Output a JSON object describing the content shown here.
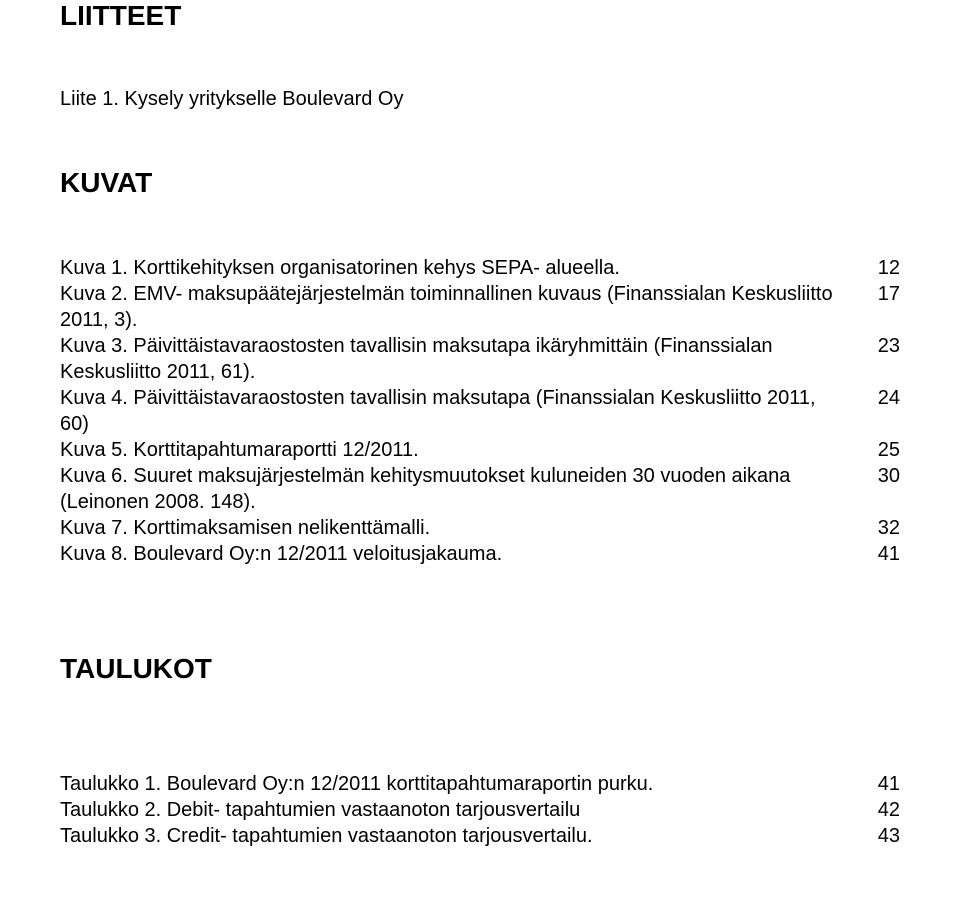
{
  "liitteet": {
    "heading": "LIITTEET",
    "item": "Liite 1. Kysely yritykselle Boulevard Oy"
  },
  "kuvat": {
    "heading": "KUVAT",
    "entries": [
      {
        "text": "Kuva 1. Korttikehityksen organisatorinen kehys SEPA- alueella.",
        "page": "12"
      },
      {
        "text": "Kuva 2. EMV- maksupäätejärjestelmän toiminnallinen kuvaus (Finanssialan Keskusliitto 2011, 3).",
        "page": "17"
      },
      {
        "text": "Kuva 3. Päivittäistavaraostosten tavallisin maksutapa ikäryhmittäin (Finanssialan Keskusliitto 2011, 61).",
        "page": "23"
      },
      {
        "text": "Kuva 4. Päivittäistavaraostosten tavallisin maksutapa (Finanssialan Keskusliitto 2011, 60)",
        "page": "24"
      },
      {
        "text": "Kuva 5. Korttitapahtumaraportti 12/2011.",
        "page": "25"
      },
      {
        "text": "Kuva 6. Suuret maksujärjestelmän kehitysmuutokset kuluneiden 30 vuoden aikana (Leinonen 2008. 148).",
        "page": "30"
      },
      {
        "text": "Kuva 7. Korttimaksamisen nelikenttämalli.",
        "page": "32"
      },
      {
        "text": "Kuva 8. Boulevard Oy:n 12/2011 veloitusjakauma.",
        "page": "41"
      }
    ]
  },
  "taulukot": {
    "heading": "TAULUKOT",
    "entries": [
      {
        "text": "Taulukko 1. Boulevard Oy:n 12/2011 korttitapahtumaraportin purku.",
        "page": "41"
      },
      {
        "text": "Taulukko 2. Debit- tapahtumien vastaanoton tarjousvertailu",
        "page": "42"
      },
      {
        "text": "Taulukko 3. Credit- tapahtumien vastaanoton tarjousvertailu.",
        "page": "43"
      }
    ]
  }
}
